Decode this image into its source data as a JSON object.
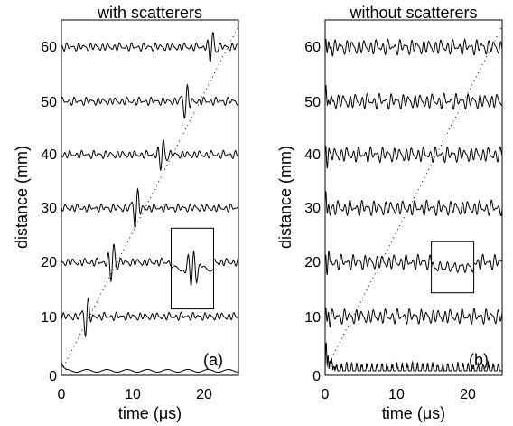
{
  "figure": {
    "panels": [
      {
        "title": "with scatterers",
        "xlabel": "time (μs)",
        "ylabel": "distance (mm)",
        "tag": "(a)",
        "xticks": [
          "0",
          "10",
          "20"
        ],
        "yticks": [
          "0",
          "10",
          "20",
          "30",
          "40",
          "50",
          "60"
        ]
      },
      {
        "title": "without scatterers",
        "xlabel": "time (μs)",
        "ylabel": "distance (mm)",
        "tag": "(b)",
        "xticks": [
          "0",
          "10",
          "20"
        ],
        "yticks": [
          "0",
          "10",
          "20",
          "30",
          "40",
          "50",
          "60"
        ]
      }
    ]
  },
  "chart_data": [
    {
      "type": "line",
      "title": "with scatterers",
      "xlabel": "time (μs)",
      "ylabel": "distance (mm)",
      "xlim": [
        0,
        25
      ],
      "ylim": [
        -1,
        65
      ],
      "trace_offsets": [
        0,
        10,
        20,
        30,
        40,
        50,
        60
      ],
      "wave_arrival_line": {
        "x": [
          0,
          25
        ],
        "y": [
          0,
          64
        ]
      },
      "trace_pulse_peaks": [
        {
          "distance": 0,
          "time": 0.0
        },
        {
          "distance": 10,
          "time": 3.6
        },
        {
          "distance": 20,
          "time": 7.2
        },
        {
          "distance": 30,
          "time": 10.6
        },
        {
          "distance": 40,
          "time": 14.2
        },
        {
          "distance": 50,
          "time": 17.6
        },
        {
          "distance": 60,
          "time": 21.2
        }
      ],
      "inset_box": {
        "x": [
          15.5,
          21.5
        ],
        "y": [
          11.5,
          26.5
        ]
      },
      "grid": false
    },
    {
      "type": "line",
      "title": "without scatterers",
      "xlabel": "time (μs)",
      "ylabel": "distance (mm)",
      "xlim": [
        0,
        25
      ],
      "ylim": [
        -1,
        65
      ],
      "trace_offsets": [
        0,
        10,
        20,
        30,
        40,
        50,
        60
      ],
      "wave_arrival_line": {
        "x": [
          0,
          25
        ],
        "y": [
          0,
          64
        ]
      },
      "inset_box": {
        "x": [
          15.0,
          21.0
        ],
        "y": [
          14.5,
          24.0
        ]
      },
      "grid": false
    }
  ]
}
